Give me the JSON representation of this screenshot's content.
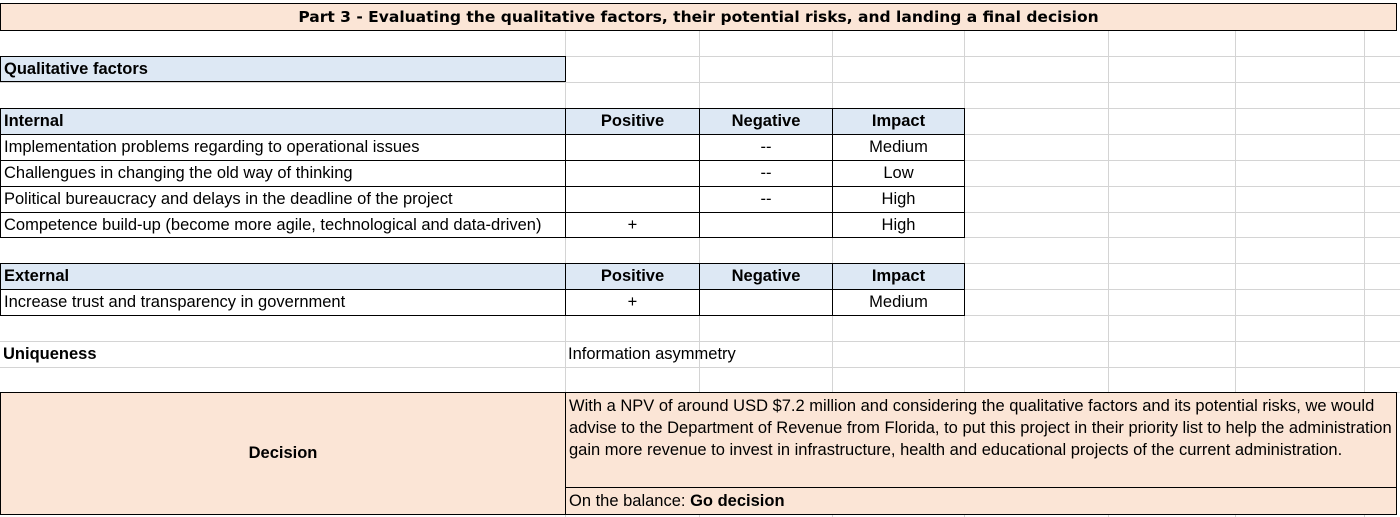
{
  "title": "Part 3 - Evaluating the qualitative factors, their potential risks, and landing a final decision",
  "qualitative_header": "Qualitative factors",
  "internal": {
    "columns": [
      "Internal",
      "Positive",
      "Negative",
      "Impact"
    ],
    "rows": [
      {
        "factor": "Implementation problems regarding to operational issues",
        "positive": "",
        "negative": "--",
        "impact": "Medium"
      },
      {
        "factor": "Challengues in changing the old way of thinking",
        "positive": "",
        "negative": "--",
        "impact": "Low"
      },
      {
        "factor": "Political bureaucracy and delays in the deadline of the project",
        "positive": "",
        "negative": "--",
        "impact": "High"
      },
      {
        "factor": "Competence build-up (become more agile, technological and data-driven)",
        "positive": "+",
        "negative": "",
        "impact": "High"
      }
    ]
  },
  "external": {
    "columns": [
      "External",
      "Positive",
      "Negative",
      "Impact"
    ],
    "rows": [
      {
        "factor": "Increase trust and transparency in government",
        "positive": "+",
        "negative": "",
        "impact": "Medium"
      }
    ]
  },
  "uniqueness": {
    "label": "Uniqueness",
    "value": "Information asymmetry"
  },
  "decision": {
    "label": "Decision",
    "text": "With a NPV of around USD $7.2 million and considering the qualitative factors and its potential risks, we would advise to the Department of Revenue from Florida, to put this project in their priority list to help the administration gain more revenue to invest in infrastructure, health and educational projects of the current administration.",
    "balance_prefix": "On the balance: ",
    "balance_value": "Go decision"
  }
}
